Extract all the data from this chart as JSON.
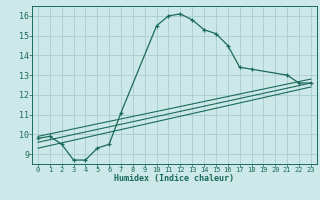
{
  "xlabel": "Humidex (Indice chaleur)",
  "bg_color": "#cce8e8",
  "grid_color": "#aacccc",
  "line_color": "#1a6b5a",
  "xlim": [
    -0.5,
    23.5
  ],
  "ylim": [
    8.5,
    16.5
  ],
  "xticks": [
    0,
    1,
    2,
    3,
    4,
    5,
    6,
    7,
    8,
    9,
    10,
    11,
    12,
    13,
    14,
    15,
    16,
    17,
    18,
    19,
    20,
    21,
    22,
    23
  ],
  "yticks": [
    9,
    10,
    11,
    12,
    13,
    14,
    15,
    16
  ],
  "curve1_x": [
    0,
    1,
    2,
    3,
    4,
    5,
    6,
    7,
    10,
    11,
    12,
    13,
    14,
    15,
    16,
    17,
    18,
    21,
    22,
    23
  ],
  "curve1_y": [
    9.8,
    9.9,
    9.5,
    8.7,
    8.7,
    9.3,
    9.5,
    11.1,
    15.5,
    16.0,
    16.1,
    15.8,
    15.3,
    15.1,
    14.5,
    13.4,
    13.3,
    13.0,
    12.6,
    12.6
  ],
  "line2_x": [
    0,
    23
  ],
  "line2_y": [
    9.3,
    12.4
  ],
  "line3_x": [
    0,
    23
  ],
  "line3_y": [
    9.6,
    12.6
  ],
  "line4_x": [
    0,
    23
  ],
  "line4_y": [
    9.9,
    12.8
  ]
}
